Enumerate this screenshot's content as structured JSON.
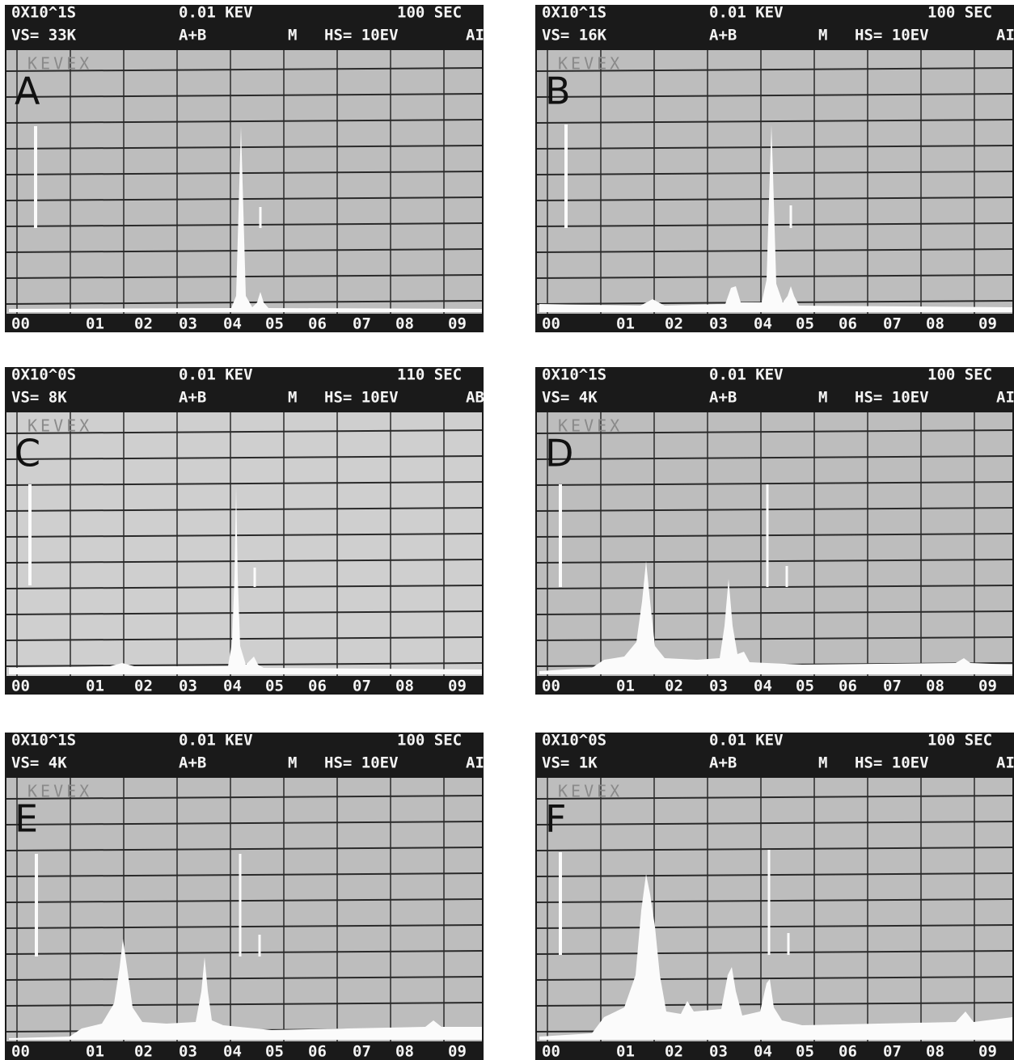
{
  "panels": [
    {
      "letter": "A",
      "header": [
        "0X10^1S",
        "0.01 KEV",
        "100 SEC"
      ],
      "status": [
        "VS= 33K",
        "A+B",
        "M",
        "HS= 10EV",
        "AI"
      ],
      "brand": "KEVEX"
    },
    {
      "letter": "B",
      "header": [
        "0X10^1S",
        "0.01 KEV",
        "100 SEC"
      ],
      "status": [
        "VS= 16K",
        "A+B",
        "M",
        "HS= 10EV",
        "AI"
      ],
      "brand": "KEVEX"
    },
    {
      "letter": "C",
      "header": [
        "0X10^0S",
        "0.01 KEV",
        "110 SEC"
      ],
      "status": [
        "VS= 8K",
        "A+B",
        "M",
        "HS= 10EV",
        "AB"
      ],
      "brand": "KEVEX"
    },
    {
      "letter": "D",
      "header": [
        "0X10^1S",
        "0.01 KEV",
        "100 SEC"
      ],
      "status": [
        "VS= 4K",
        "A+B",
        "M",
        "HS= 10EV",
        "AI"
      ],
      "brand": "KEVEX"
    },
    {
      "letter": "E",
      "header": [
        "0X10^1S",
        "0.01 KEV",
        "100 SEC"
      ],
      "status": [
        "VS= 4K",
        "A+B",
        "M",
        "HS= 10EV",
        "AI"
      ],
      "brand": "KEVEX"
    },
    {
      "letter": "F",
      "header": [
        "0X10^0S",
        "0.01 KEV",
        "100 SEC"
      ],
      "status": [
        "VS= 1K",
        "A+B",
        "M",
        "HS= 10EV",
        "AI"
      ],
      "brand": "KEVEX"
    }
  ],
  "axis_labels": [
    "00",
    "01",
    "02",
    "03",
    "04",
    "05",
    "06",
    "07",
    "08",
    "09"
  ]
}
